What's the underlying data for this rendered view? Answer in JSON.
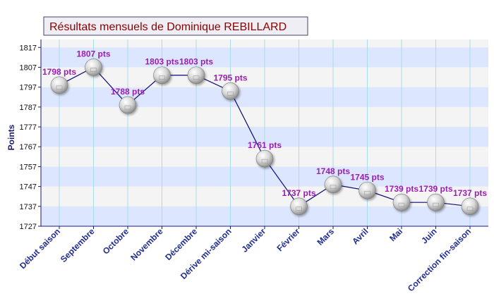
{
  "chart_data": {
    "type": "line",
    "title": "Résultats mensuels de Dominique REBILLARD",
    "ylabel": "Points",
    "xlabel": "",
    "categories": [
      "Début saison",
      "Septembre",
      "Octobre",
      "Novembre",
      "Décembre",
      "Dérive mi-saison",
      "Janvier",
      "Février",
      "Mars",
      "Avril",
      "Mai",
      "Juin",
      "Correction fin-saison"
    ],
    "values": [
      1798,
      1807,
      1788,
      1803,
      1803,
      1795,
      1761,
      1737,
      1748,
      1745,
      1739,
      1739,
      1737
    ],
    "data_labels": [
      "1798 pts",
      "1807 pts",
      "1788 pts",
      "1803 pts",
      "1803 pts",
      "1795 pts",
      "1761 pts",
      "1737 pts",
      "1748 pts",
      "1745 pts",
      "1739 pts",
      "1739 pts",
      "1737 pts"
    ],
    "yticks": [
      1727,
      1737,
      1747,
      1757,
      1767,
      1777,
      1787,
      1797,
      1807,
      1817
    ],
    "ylim": [
      1727,
      1821
    ],
    "grid": true,
    "colors": {
      "line": "#0a0a7a",
      "band": "#dde6ff",
      "band_alt": "#f4f4f4",
      "vgrid": "#a8dcea",
      "axis": "#1a1a6e",
      "marker": "#d8d8d8"
    }
  }
}
